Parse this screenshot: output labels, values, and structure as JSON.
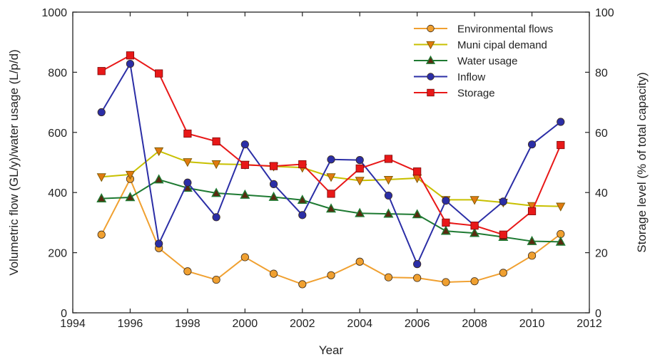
{
  "chart_data": {
    "type": "line",
    "title": "",
    "xlabel": "Year",
    "ylabel_left": "Volumetric flow (GL/y)/water usage (L/p/d)",
    "ylabel_right": "Storage level (% of total capacity)",
    "xlim": [
      1994,
      2012
    ],
    "ylim_left": [
      0,
      1000
    ],
    "ylim_right": [
      0,
      100
    ],
    "x_ticks": [
      1994,
      1996,
      1998,
      2000,
      2002,
      2004,
      2006,
      2008,
      2010,
      2012
    ],
    "y_ticks_left": [
      0,
      200,
      400,
      600,
      800,
      1000
    ],
    "y_ticks_right": [
      0,
      20,
      40,
      60,
      80,
      100
    ],
    "grid": false,
    "legend_position": "top-right",
    "x": [
      1995,
      1996,
      1997,
      1998,
      1999,
      2000,
      2001,
      2002,
      2003,
      2004,
      2005,
      2006,
      2007,
      2008,
      2009,
      2010,
      2011
    ],
    "series": [
      {
        "name": "Environmental flows",
        "axis": "left",
        "color": "#f0a030",
        "marker": "circle",
        "values": [
          260,
          445,
          215,
          138,
          110,
          185,
          130,
          95,
          125,
          170,
          118,
          116,
          102,
          105,
          133,
          190,
          262
        ]
      },
      {
        "name": "Muni cipal demand",
        "axis": "left",
        "color": "#c8c000",
        "marker": "triangle-down",
        "values": [
          452,
          460,
          538,
          502,
          495,
          493,
          487,
          483,
          452,
          440,
          443,
          448,
          376,
          376,
          367,
          356,
          354
        ]
      },
      {
        "name": "Water usage",
        "axis": "left",
        "color": "#1e7a32",
        "marker": "triangle-up",
        "values": [
          380,
          384,
          443,
          415,
          398,
          392,
          385,
          375,
          346,
          331,
          329,
          327,
          272,
          265,
          252,
          238,
          236
        ]
      },
      {
        "name": "Inflow",
        "axis": "left",
        "color": "#2b2ea6",
        "marker": "circle",
        "values": [
          667,
          828,
          230,
          433,
          318,
          560,
          428,
          325,
          510,
          508,
          390,
          162,
          373,
          290,
          370,
          560,
          635
        ]
      },
      {
        "name": "Storage",
        "axis": "right",
        "color": "#e81818",
        "marker": "square",
        "values": [
          80.4,
          85.6,
          79.6,
          59.6,
          57.0,
          49.2,
          48.8,
          49.4,
          39.6,
          48.0,
          51.2,
          47.0,
          30.0,
          29.0,
          26.0,
          33.8,
          55.8
        ]
      }
    ]
  }
}
